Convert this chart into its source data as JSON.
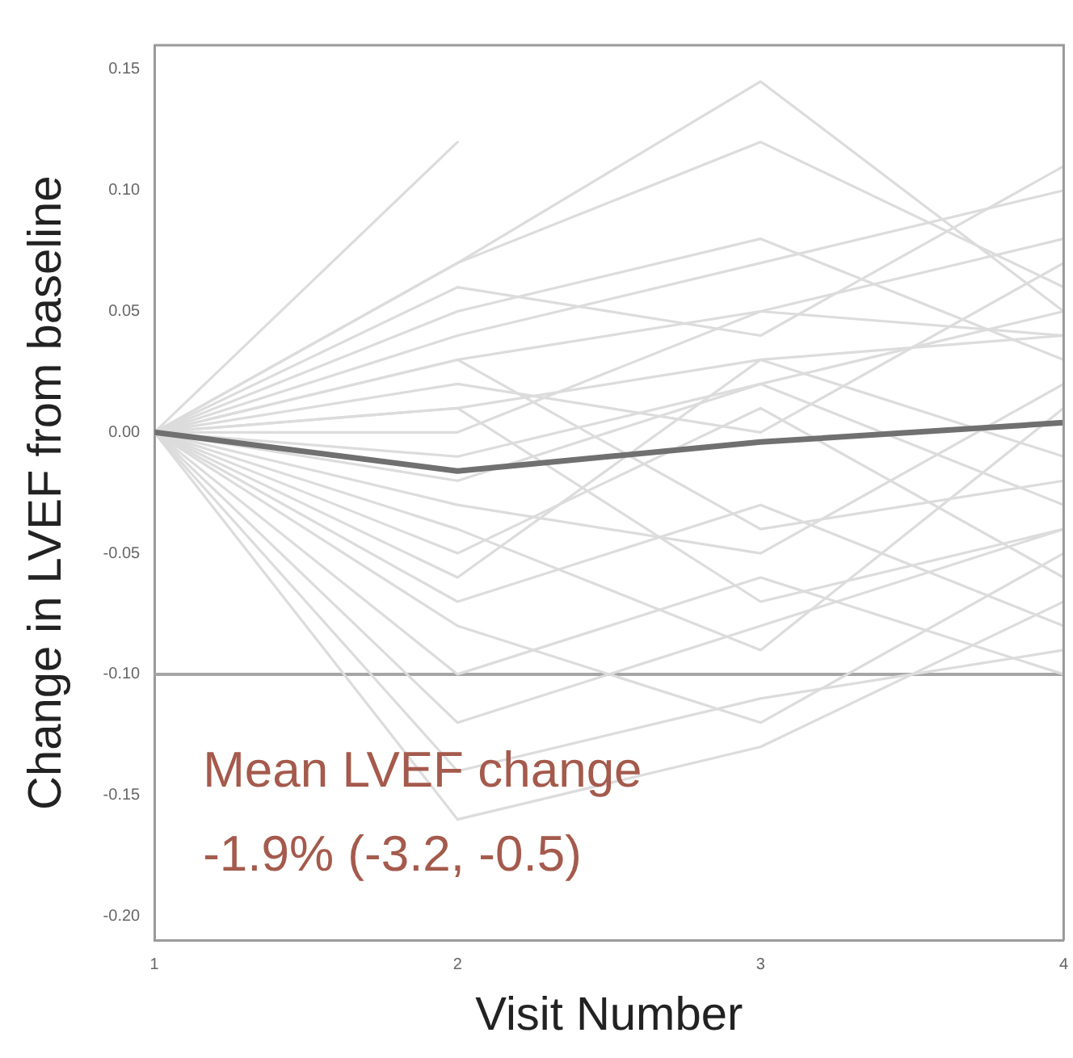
{
  "chart_data": {
    "type": "line",
    "xlabel": "Visit Number",
    "ylabel": "Change in LVEF from baseline",
    "x": [
      1,
      2,
      3,
      4
    ],
    "xlim": [
      1,
      4
    ],
    "xticks": [
      1,
      2,
      3,
      4
    ],
    "ylim": [
      -0.21,
      0.16
    ],
    "yticks": [
      {
        "value": -0.2,
        "label": "-0.20"
      },
      {
        "value": -0.15,
        "label": "-0.15"
      },
      {
        "value": -0.1,
        "label": "-0.10"
      },
      {
        "value": -0.05,
        "label": "-0.05"
      },
      {
        "value": 0,
        "label": "0.00"
      },
      {
        "value": 0.05,
        "label": "0.05"
      },
      {
        "value": 0.1,
        "label": "0.10"
      },
      {
        "value": 0.15,
        "label": "0.15"
      }
    ],
    "grid": false,
    "legend": false,
    "marker": "none",
    "line_style": "solid",
    "ref_lines": [
      {
        "axis": "y",
        "value": -0.1,
        "color": "#a6a6a6"
      }
    ],
    "annotations": [
      "Mean LVEF change",
      "-1.9% (-3.2, -0.5)"
    ],
    "series": [
      {
        "color": "#dcdcdc",
        "values": [
          0,
          0.12,
          null,
          null
        ]
      },
      {
        "color": "#dcdcdc",
        "values": [
          0,
          0.07,
          0.145,
          0.05
        ]
      },
      {
        "color": "#dcdcdc",
        "values": [
          0,
          0.07,
          0.12,
          0.06
        ]
      },
      {
        "color": "#dcdcdc",
        "values": [
          0,
          0.06,
          0.04,
          0.11
        ]
      },
      {
        "color": "#dcdcdc",
        "values": [
          0,
          0.05,
          0.08,
          0.03
        ]
      },
      {
        "color": "#dcdcdc",
        "values": [
          0,
          0.04,
          0.07,
          0.1
        ]
      },
      {
        "color": "#dcdcdc",
        "values": [
          0,
          0.03,
          0.05,
          0.08
        ]
      },
      {
        "color": "#dcdcdc",
        "values": [
          0,
          0.02,
          0,
          0.07
        ]
      },
      {
        "color": "#dcdcdc",
        "values": [
          0,
          0.01,
          0.03,
          0.04
        ]
      },
      {
        "color": "#dcdcdc",
        "values": [
          0,
          -0.01,
          0.02,
          -0.03
        ]
      },
      {
        "color": "#dcdcdc",
        "values": [
          0,
          -0.03,
          -0.05,
          0.02
        ]
      },
      {
        "color": "#dcdcdc",
        "values": [
          0,
          -0.05,
          0.01,
          -0.06
        ]
      },
      {
        "color": "#dcdcdc",
        "values": [
          0,
          -0.07,
          -0.03,
          -0.08
        ]
      },
      {
        "color": "#dcdcdc",
        "values": [
          0,
          -0.08,
          -0.12,
          -0.05
        ]
      },
      {
        "color": "#dcdcdc",
        "values": [
          0,
          -0.1,
          -0.06,
          -0.1
        ]
      },
      {
        "color": "#dcdcdc",
        "values": [
          0,
          -0.12,
          -0.08,
          -0.04
        ]
      },
      {
        "color": "#dcdcdc",
        "values": [
          0,
          -0.14,
          -0.11,
          -0.09
        ]
      },
      {
        "color": "#dcdcdc",
        "values": [
          0,
          -0.16,
          -0.13,
          -0.07
        ]
      },
      {
        "color": "#dcdcdc",
        "values": [
          0,
          -0.04,
          -0.09,
          0.01
        ]
      },
      {
        "color": "#dcdcdc",
        "values": [
          0,
          0,
          0.05,
          0.04
        ]
      },
      {
        "color": "#dcdcdc",
        "values": [
          0,
          -0.02,
          0.02,
          0.05
        ]
      },
      {
        "color": "#dcdcdc",
        "values": [
          0,
          0.03,
          -0.04,
          -0.02
        ]
      },
      {
        "color": "#dcdcdc",
        "values": [
          0,
          -0.06,
          0.03,
          -0.01
        ]
      },
      {
        "color": "#dcdcdc",
        "values": [
          0,
          0.01,
          -0.07,
          -0.04
        ]
      },
      {
        "color": "#707070",
        "values": [
          0,
          -0.016,
          -0.004,
          0.004
        ]
      }
    ]
  }
}
